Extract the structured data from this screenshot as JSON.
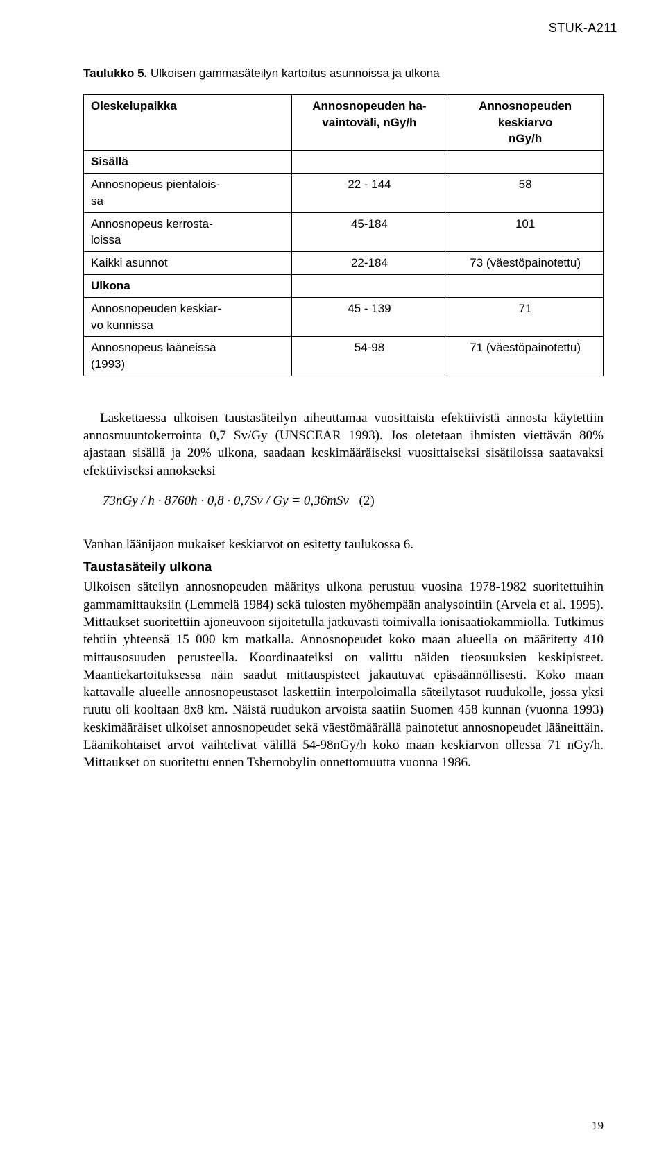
{
  "header_code": "STUK-A211",
  "table": {
    "caption_bold": "Taulukko 5.",
    "caption_rest": " Ulkoisen gammasäteilyn kartoitus asunnoissa ja ulkona",
    "columns": [
      "Oleskelupaikka",
      "Annosnopeuden ha-\nvaintoväli, nGy/h",
      "Annosnopeuden\nkeskiarvo\nnGy/h"
    ],
    "section1": "Sisällä",
    "rows1": [
      {
        "label": "Annosnopeus pientalois-\nsa",
        "c2": "22 - 144",
        "c3": "58"
      },
      {
        "label": "Annosnopeus kerrosta-\nloissa",
        "c2": "45-184",
        "c3": "101"
      },
      {
        "label": "Kaikki asunnot",
        "c2": "22-184",
        "c3": "73 (väestöpainotettu)"
      }
    ],
    "section2": "Ulkona",
    "rows2": [
      {
        "label": "Annosnopeuden keskiar-\nvo kunnissa",
        "c2": "45 - 139",
        "c3": "71"
      },
      {
        "label": "Annosnopeus lääneissä\n(1993)",
        "c2": "54-98",
        "c3": "71 (väestöpainotettu)"
      }
    ]
  },
  "para1_a": "Laskettaessa ulkoisen taustasäteilyn aiheuttamaa vuosittaista efektiivistä annosta käytettiin annosmuuntokerrointa 0,7 Sv/Gy (UNSCEAR 1993). Jos oletetaan ihmisten viettävän 80% ajastaan sisällä ja 20% ulkona, saadaan keskimääräiseksi vuosittaiseksi sisätiloissa saatavaksi efektiiviseksi annokseksi",
  "formula": "73nGy / h · 8760h · 0,8 · 0,7Sv / Gy = 0,36mSv",
  "formula_eqno": "(2)",
  "para2": "Vanhan läänijaon mukaiset keskiarvot on esitetty taulukossa 6.",
  "section_heading": "Taustasäteily ulkona",
  "para3": "Ulkoisen säteilyn annosnopeuden määritys ulkona perustuu vuosina 1978-1982 suoritettuihin gammamittauksiin (Lemmelä 1984) sekä tulosten myöhempään analysointiin (Arvela et al. 1995). Mittaukset suoritettiin ajoneuvoon sijoitetulla jatkuvasti toimivalla ionisaatiokammiolla. Tutkimus tehtiin yhteensä 15 000 km matkalla. Annosnopeudet koko maan alueella on määritetty 410 mittausosuuden perusteella. Koordinaateiksi on valittu näiden tieosuuksien keskipisteet. Maantiekartoituksessa näin saadut mittauspisteet jakautuvat epäsäännöllisesti. Koko maan kattavalle alueelle annosnopeustasot laskettiin interpoloimalla säteilytasot ruudukolle, jossa yksi ruutu oli kooltaan 8x8 km. Näistä ruudukon arvoista saatiin Suomen 458 kunnan (vuonna 1993) keskimääräiset ulkoiset annosnopeudet sekä väestömäärällä painotetut annosnopeudet lääneittäin. Läänikohtaiset arvot vaihtelivat välillä 54-98nGy/h koko maan keskiarvon ollessa 71 nGy/h. Mittaukset on suoritettu ennen Tshernobylin onnettomuutta vuonna 1986.",
  "page_number": "19"
}
